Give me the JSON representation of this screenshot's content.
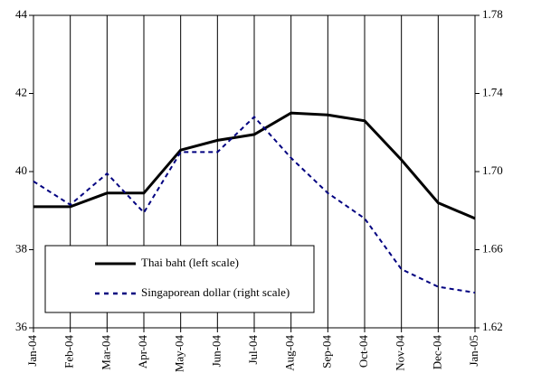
{
  "chart_data": {
    "type": "line",
    "categories": [
      "Jan-04",
      "Feb-04",
      "Mar-04",
      "Apr-04",
      "May-04",
      "Jun-04",
      "Jul-04",
      "Aug-04",
      "Sep-04",
      "Oct-04",
      "Nov-04",
      "Dec-04",
      "Jan-05"
    ],
    "series": [
      {
        "name": "Thai baht (left scale)",
        "color": "#000000",
        "dash": "solid",
        "values": [
          39.1,
          39.1,
          39.45,
          39.45,
          40.55,
          40.8,
          40.95,
          41.5,
          41.45,
          41.3,
          40.3,
          39.2,
          38.8
        ]
      },
      {
        "name": "Singaporean dollar (right scale)",
        "color": "#000080",
        "dash": "dashed",
        "axis": "y2",
        "values": [
          1.695,
          1.683,
          1.699,
          1.679,
          1.71,
          1.71,
          1.728,
          1.707,
          1.689,
          1.676,
          1.65,
          1.641,
          1.638
        ]
      }
    ],
    "ylim": [
      36,
      44
    ],
    "yticks": [
      36,
      38,
      40,
      42,
      44
    ],
    "y2lim": [
      1.62,
      1.78
    ],
    "y2ticks": [
      1.62,
      1.66,
      {
        "value": 1.7,
        "label": "1.70"
      },
      1.74,
      1.78
    ],
    "grid": "x",
    "legend": "lower left"
  }
}
